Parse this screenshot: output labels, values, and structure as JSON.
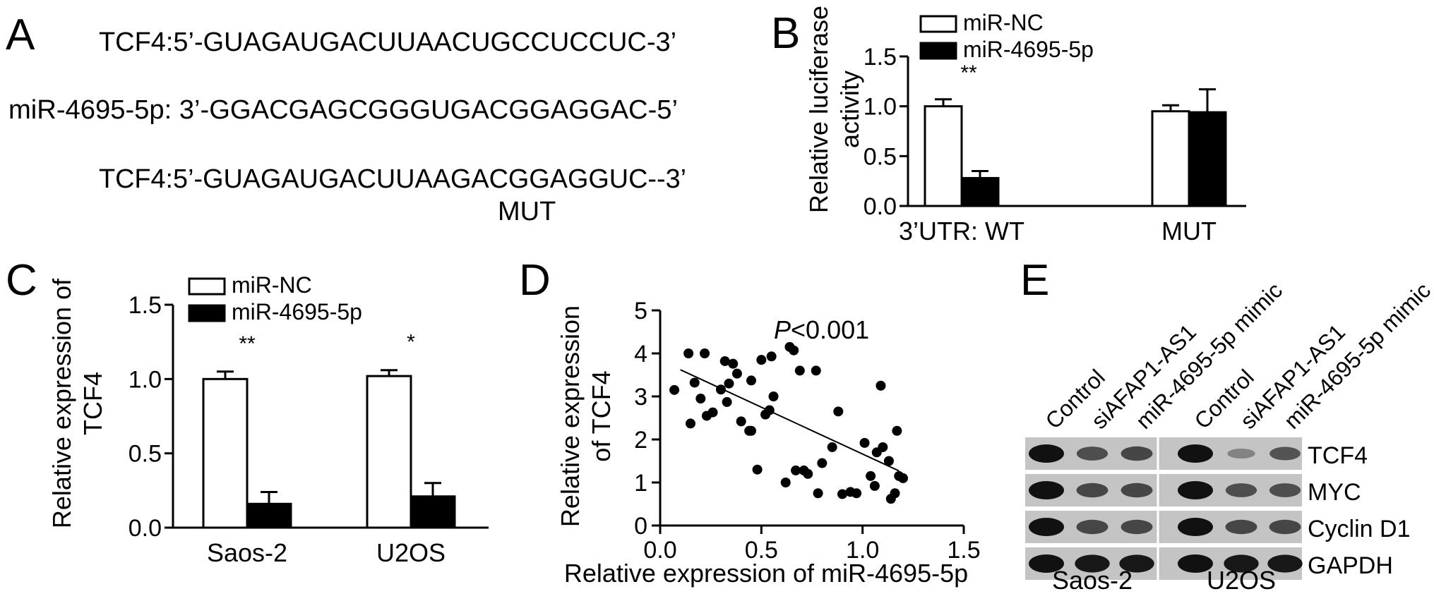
{
  "panels": {
    "A": {
      "letter": "A",
      "seq_wt": "TCF4:5’-GUAGAUGACUUAACUGCCUCCUC-3’",
      "seq_mir": "miR-4695-5p: 3’-GGACGAGCGGGUGACGGAGGAC-5’",
      "seq_mut": "TCF4:5’-GUAGAUGACUUAAGACGGAGGUC--3’",
      "mut_label": "MUT"
    },
    "B": {
      "letter": "B"
    },
    "C": {
      "letter": "C"
    },
    "D": {
      "letter": "D"
    },
    "E": {
      "letter": "E",
      "lanes": [
        "Control",
        "siAFAP1-AS1",
        "miR-4695-5p mimic",
        "Control",
        "siAFAP1-AS1",
        "miR-4695-5p mimic"
      ],
      "rows": [
        "TCF4",
        "MYC",
        "Cyclin D1",
        "GAPDH"
      ],
      "cell_lines": [
        "Saos-2",
        "U2OS"
      ],
      "band_intensity": [
        [
          1.0,
          0.55,
          0.6,
          1.0,
          0.15,
          0.5
        ],
        [
          1.0,
          0.6,
          0.6,
          1.0,
          0.55,
          0.55
        ],
        [
          1.0,
          0.6,
          0.6,
          1.0,
          0.6,
          0.6
        ],
        [
          1.0,
          0.95,
          0.95,
          1.0,
          0.95,
          0.95
        ]
      ]
    }
  },
  "chart_data": [
    {
      "panel": "B",
      "type": "bar",
      "categories": [
        "3’UTR: WT",
        "MUT"
      ],
      "series": [
        {
          "name": "miR-NC",
          "values": [
            1.0,
            0.95
          ],
          "errors": [
            0.07,
            0.06
          ],
          "color": "#ffffff"
        },
        {
          "name": "miR-4695-5p",
          "values": [
            0.28,
            0.94
          ],
          "errors": [
            0.07,
            0.23
          ],
          "color": "#000000"
        }
      ],
      "ylabel_lines": [
        "Relative luciferase",
        "activity"
      ],
      "ylim": [
        0,
        1.5
      ],
      "yticks": [
        "0.0",
        "0.5",
        "1.0",
        "1.5"
      ],
      "significance": [
        "**",
        ""
      ],
      "legend_position": "top"
    },
    {
      "panel": "C",
      "type": "bar",
      "categories": [
        "Saos-2",
        "U2OS"
      ],
      "series": [
        {
          "name": "miR-NC",
          "values": [
            1.0,
            1.02
          ],
          "errors": [
            0.05,
            0.04
          ],
          "color": "#ffffff"
        },
        {
          "name": "miR-4695-5p",
          "values": [
            0.16,
            0.21
          ],
          "errors": [
            0.08,
            0.09
          ],
          "color": "#000000"
        }
      ],
      "ylabel_lines": [
        "Relative expression of",
        "TCF4"
      ],
      "ylim": [
        0,
        1.5
      ],
      "yticks": [
        "0.0",
        "0.5",
        "1.0",
        "1.5"
      ],
      "significance": [
        "**",
        "*"
      ],
      "legend_position": "top"
    },
    {
      "panel": "D",
      "type": "scatter",
      "xlabel": "Relative expression of miR-4695-5p",
      "ylabel_lines": [
        "Relative expression",
        "of TCF4"
      ],
      "xlim": [
        0,
        1.5
      ],
      "ylim": [
        0,
        5
      ],
      "xticks": [
        "0.0",
        "0.5",
        "1.0",
        "1.5"
      ],
      "yticks": [
        "0",
        "1",
        "2",
        "3",
        "4",
        "5"
      ],
      "annotation_italic": "P",
      "annotation_rest": "<0.001",
      "fit_line": {
        "x": [
          0.1,
          1.18
        ],
        "y": [
          3.62,
          1.27
        ]
      },
      "points": [
        [
          0.07,
          3.15
        ],
        [
          0.14,
          4.0
        ],
        [
          0.15,
          2.37
        ],
        [
          0.17,
          3.32
        ],
        [
          0.2,
          2.95
        ],
        [
          0.22,
          4.0
        ],
        [
          0.23,
          2.55
        ],
        [
          0.26,
          2.63
        ],
        [
          0.3,
          3.16
        ],
        [
          0.32,
          3.82
        ],
        [
          0.33,
          2.87
        ],
        [
          0.34,
          3.3
        ],
        [
          0.36,
          3.76
        ],
        [
          0.38,
          3.53
        ],
        [
          0.4,
          2.42
        ],
        [
          0.44,
          2.2
        ],
        [
          0.45,
          2.2
        ],
        [
          0.45,
          3.37
        ],
        [
          0.48,
          1.3
        ],
        [
          0.5,
          3.85
        ],
        [
          0.52,
          2.58
        ],
        [
          0.54,
          2.68
        ],
        [
          0.55,
          3.93
        ],
        [
          0.56,
          3.0
        ],
        [
          0.62,
          1.0
        ],
        [
          0.64,
          4.15
        ],
        [
          0.66,
          4.07
        ],
        [
          0.67,
          1.28
        ],
        [
          0.69,
          3.6
        ],
        [
          0.71,
          1.28
        ],
        [
          0.73,
          1.2
        ],
        [
          0.77,
          3.6
        ],
        [
          0.78,
          0.75
        ],
        [
          0.8,
          1.45
        ],
        [
          0.85,
          1.82
        ],
        [
          0.88,
          2.65
        ],
        [
          0.9,
          0.73
        ],
        [
          0.94,
          0.78
        ],
        [
          0.97,
          0.75
        ],
        [
          1.01,
          1.92
        ],
        [
          1.04,
          1.15
        ],
        [
          1.06,
          0.92
        ],
        [
          1.07,
          1.7
        ],
        [
          1.09,
          3.25
        ],
        [
          1.1,
          1.82
        ],
        [
          1.13,
          1.5
        ],
        [
          1.14,
          0.62
        ],
        [
          1.16,
          0.75
        ],
        [
          1.17,
          2.2
        ],
        [
          1.18,
          1.15
        ],
        [
          1.2,
          1.1
        ]
      ]
    }
  ]
}
